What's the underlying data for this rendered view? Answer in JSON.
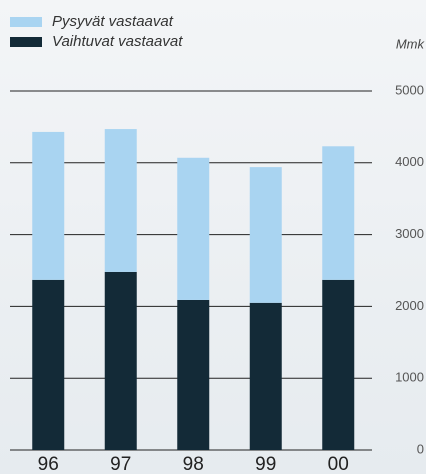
{
  "chart_data": {
    "type": "stacked_bar",
    "categories": [
      "96",
      "97",
      "98",
      "99",
      "00"
    ],
    "series": [
      {
        "name": "Pysyvät vastaavat",
        "color": "#a9d4f1",
        "values": [
          2060,
          1990,
          1980,
          1890,
          1860
        ]
      },
      {
        "name": "Vaihtuvat vastaavat",
        "color": "#132a37",
        "values": [
          2370,
          2480,
          2090,
          2050,
          2370
        ]
      }
    ],
    "unit_label": "Mmk",
    "ylim": [
      0,
      5000
    ],
    "yticks": [
      0,
      1000,
      2000,
      3000,
      4000,
      5000
    ],
    "grid": true
  }
}
